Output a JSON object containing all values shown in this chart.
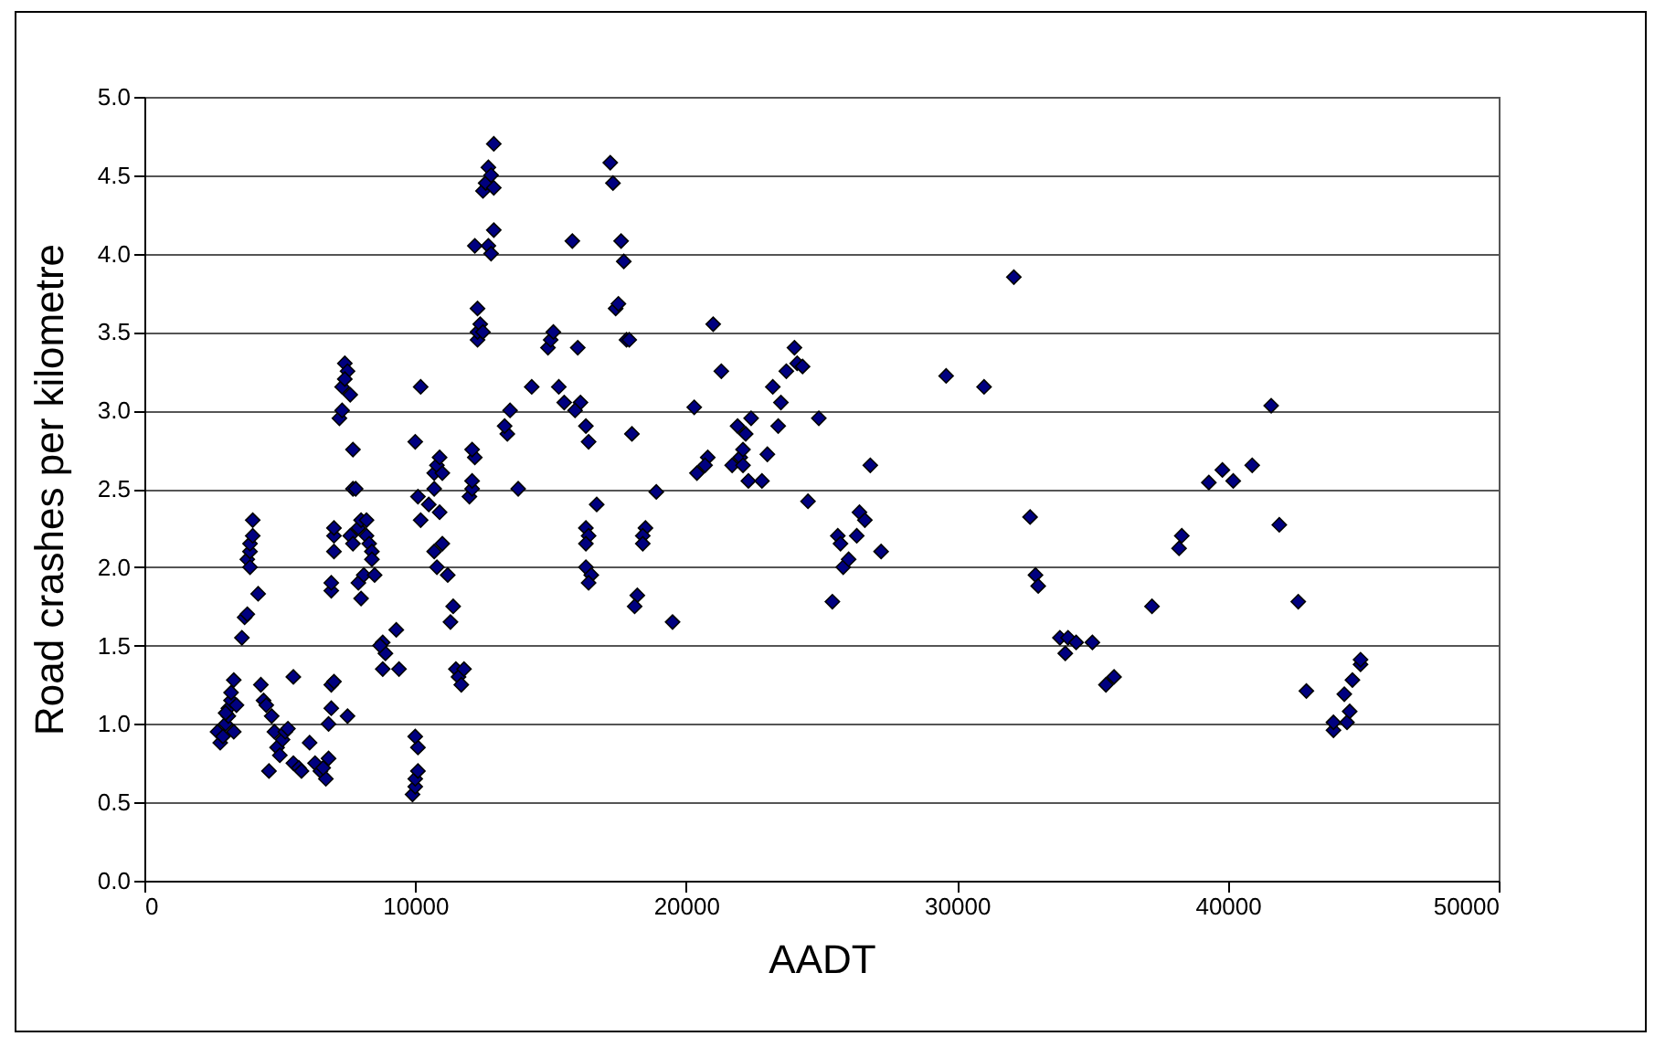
{
  "chart_data": {
    "type": "scatter",
    "xlabel": "AADT",
    "ylabel": "Road crashes per kilometre",
    "marker": "diamond",
    "grid": "y",
    "xlim": [
      0,
      50000
    ],
    "xticks": [
      0,
      10000,
      20000,
      30000,
      40000,
      50000
    ],
    "ylim": [
      0,
      5
    ],
    "yticks": [
      {
        "value": 0,
        "label": "0.0"
      },
      {
        "value": 0.5,
        "label": "0.5"
      },
      {
        "value": 1,
        "label": "1.0"
      },
      {
        "value": 1.5,
        "label": "1.5"
      },
      {
        "value": 2,
        "label": "2.0"
      },
      {
        "value": 2.5,
        "label": "2.5"
      },
      {
        "value": 3,
        "label": "3.0"
      },
      {
        "value": 3.5,
        "label": "3.5"
      },
      {
        "value": 4,
        "label": "4.0"
      },
      {
        "value": 4.5,
        "label": "4.5"
      },
      {
        "value": 5,
        "label": "5.0"
      }
    ],
    "series": [
      {
        "color": "#000080",
        "x": [
          2700,
          2800,
          2900,
          3000,
          3100,
          3100,
          3200,
          3200,
          3300,
          3300,
          3400,
          3000,
          3600,
          3700,
          3800,
          3800,
          3900,
          3900,
          4000,
          4000,
          3900,
          4200,
          4300,
          4400,
          4500,
          4600,
          4700,
          4800,
          4900,
          5000,
          5100,
          5200,
          5300,
          5500,
          5500,
          5700,
          5800,
          6100,
          6300,
          6500,
          6700,
          6800,
          6600,
          6800,
          6900,
          6900,
          7000,
          6900,
          6900,
          7000,
          7000,
          7000,
          7200,
          7300,
          7300,
          7400,
          7500,
          7400,
          7600,
          7700,
          7700,
          7800,
          7600,
          7700,
          7500,
          7900,
          8000,
          7900,
          8000,
          8100,
          8200,
          8300,
          8400,
          8400,
          8500,
          8200,
          8800,
          8900,
          8800,
          9300,
          9400,
          8700,
          9900,
          10000,
          10000,
          10100,
          10100,
          10000,
          10000,
          10200,
          10100,
          10200,
          10500,
          10700,
          10700,
          10800,
          10900,
          11000,
          10700,
          10800,
          11000,
          11200,
          10900,
          11400,
          11300,
          11500,
          11600,
          11700,
          11800,
          12000,
          12100,
          12100,
          12200,
          12100,
          12300,
          12300,
          12400,
          12500,
          12300,
          12200,
          12700,
          12500,
          12600,
          12700,
          12900,
          12800,
          12900,
          12900,
          12800,
          13400,
          13300,
          13500,
          13800,
          14300,
          14900,
          15000,
          15100,
          15300,
          15500,
          15800,
          16000,
          16100,
          15900,
          16300,
          16400,
          16300,
          16400,
          16300,
          16300,
          16500,
          16400,
          16700,
          17200,
          17300,
          17400,
          17500,
          17600,
          17700,
          17800,
          17900,
          18000,
          18200,
          18100,
          18500,
          18400,
          18400,
          18900,
          19500,
          20300,
          20400,
          20800,
          20700,
          21000,
          21300,
          21900,
          21700,
          22000,
          22100,
          22300,
          22400,
          22200,
          22100,
          22800,
          23000,
          23200,
          23500,
          23400,
          23700,
          24000,
          24100,
          24300,
          24500,
          24900,
          25400,
          25600,
          25700,
          25800,
          26000,
          26300,
          26400,
          26600,
          26800,
          27200,
          29600,
          31000,
          32100,
          32700,
          32900,
          33000,
          33800,
          34000,
          34100,
          34400,
          35000,
          35500,
          35800,
          37200,
          38200,
          38300,
          39300,
          39800,
          40200,
          40900,
          41600,
          41900,
          42600,
          42900,
          43900,
          43900,
          44400,
          44500,
          44300,
          44600,
          44900,
          44900
        ],
        "values": [
          0.95,
          0.88,
          0.92,
          1.0,
          1.05,
          1.1,
          1.15,
          1.2,
          1.28,
          0.95,
          1.12,
          1.07,
          1.55,
          1.68,
          1.7,
          2.05,
          2.1,
          2.15,
          2.2,
          2.3,
          2.0,
          1.83,
          1.25,
          1.15,
          1.12,
          0.7,
          1.05,
          0.95,
          0.85,
          0.8,
          0.9,
          0.95,
          0.97,
          0.75,
          1.3,
          0.72,
          0.7,
          0.88,
          0.75,
          0.7,
          0.65,
          0.78,
          0.72,
          1.0,
          1.1,
          1.25,
          1.27,
          1.85,
          1.9,
          2.1,
          2.2,
          2.25,
          2.95,
          3.0,
          3.15,
          3.3,
          3.25,
          3.2,
          3.1,
          2.75,
          2.5,
          2.5,
          2.2,
          2.15,
          1.05,
          2.25,
          2.3,
          1.9,
          1.8,
          1.95,
          2.2,
          2.15,
          2.1,
          2.05,
          1.95,
          2.3,
          1.52,
          1.45,
          1.35,
          1.6,
          1.35,
          1.5,
          0.55,
          0.6,
          0.65,
          0.7,
          0.85,
          0.92,
          2.8,
          3.15,
          2.45,
          2.3,
          2.4,
          2.5,
          2.6,
          2.65,
          2.7,
          2.6,
          2.1,
          2.0,
          2.15,
          1.95,
          2.35,
          1.75,
          1.65,
          1.35,
          1.3,
          1.25,
          1.35,
          2.45,
          2.5,
          2.55,
          2.7,
          2.75,
          3.45,
          3.5,
          3.55,
          3.5,
          3.65,
          4.05,
          4.05,
          4.4,
          4.45,
          4.55,
          4.7,
          4.5,
          4.42,
          4.15,
          4.0,
          2.85,
          2.9,
          3.0,
          2.5,
          3.15,
          3.4,
          3.45,
          3.5,
          3.15,
          3.05,
          4.08,
          3.4,
          3.05,
          3.0,
          2.9,
          2.8,
          2.25,
          2.2,
          2.15,
          2.0,
          1.95,
          1.9,
          2.4,
          4.58,
          4.45,
          3.65,
          3.68,
          4.08,
          3.95,
          3.45,
          3.45,
          2.85,
          1.82,
          1.75,
          2.25,
          2.2,
          2.15,
          2.48,
          1.65,
          3.02,
          2.6,
          2.7,
          2.65,
          3.55,
          3.25,
          2.9,
          2.65,
          2.7,
          2.65,
          2.55,
          2.95,
          2.85,
          2.75,
          2.55,
          2.72,
          3.15,
          3.05,
          2.9,
          3.25,
          3.4,
          3.3,
          3.28,
          2.42,
          2.95,
          1.78,
          2.2,
          2.15,
          2.0,
          2.05,
          2.2,
          2.35,
          2.3,
          2.65,
          2.1,
          3.22,
          3.15,
          3.85,
          2.32,
          1.95,
          1.88,
          1.55,
          1.45,
          1.55,
          1.52,
          1.52,
          1.25,
          1.3,
          1.75,
          2.12,
          2.2,
          2.54,
          2.62,
          2.55,
          2.65,
          3.03,
          2.27,
          1.78,
          1.21,
          0.96,
          1.01,
          1.01,
          1.08,
          1.19,
          1.28,
          1.38,
          1.41
        ]
      }
    ]
  }
}
